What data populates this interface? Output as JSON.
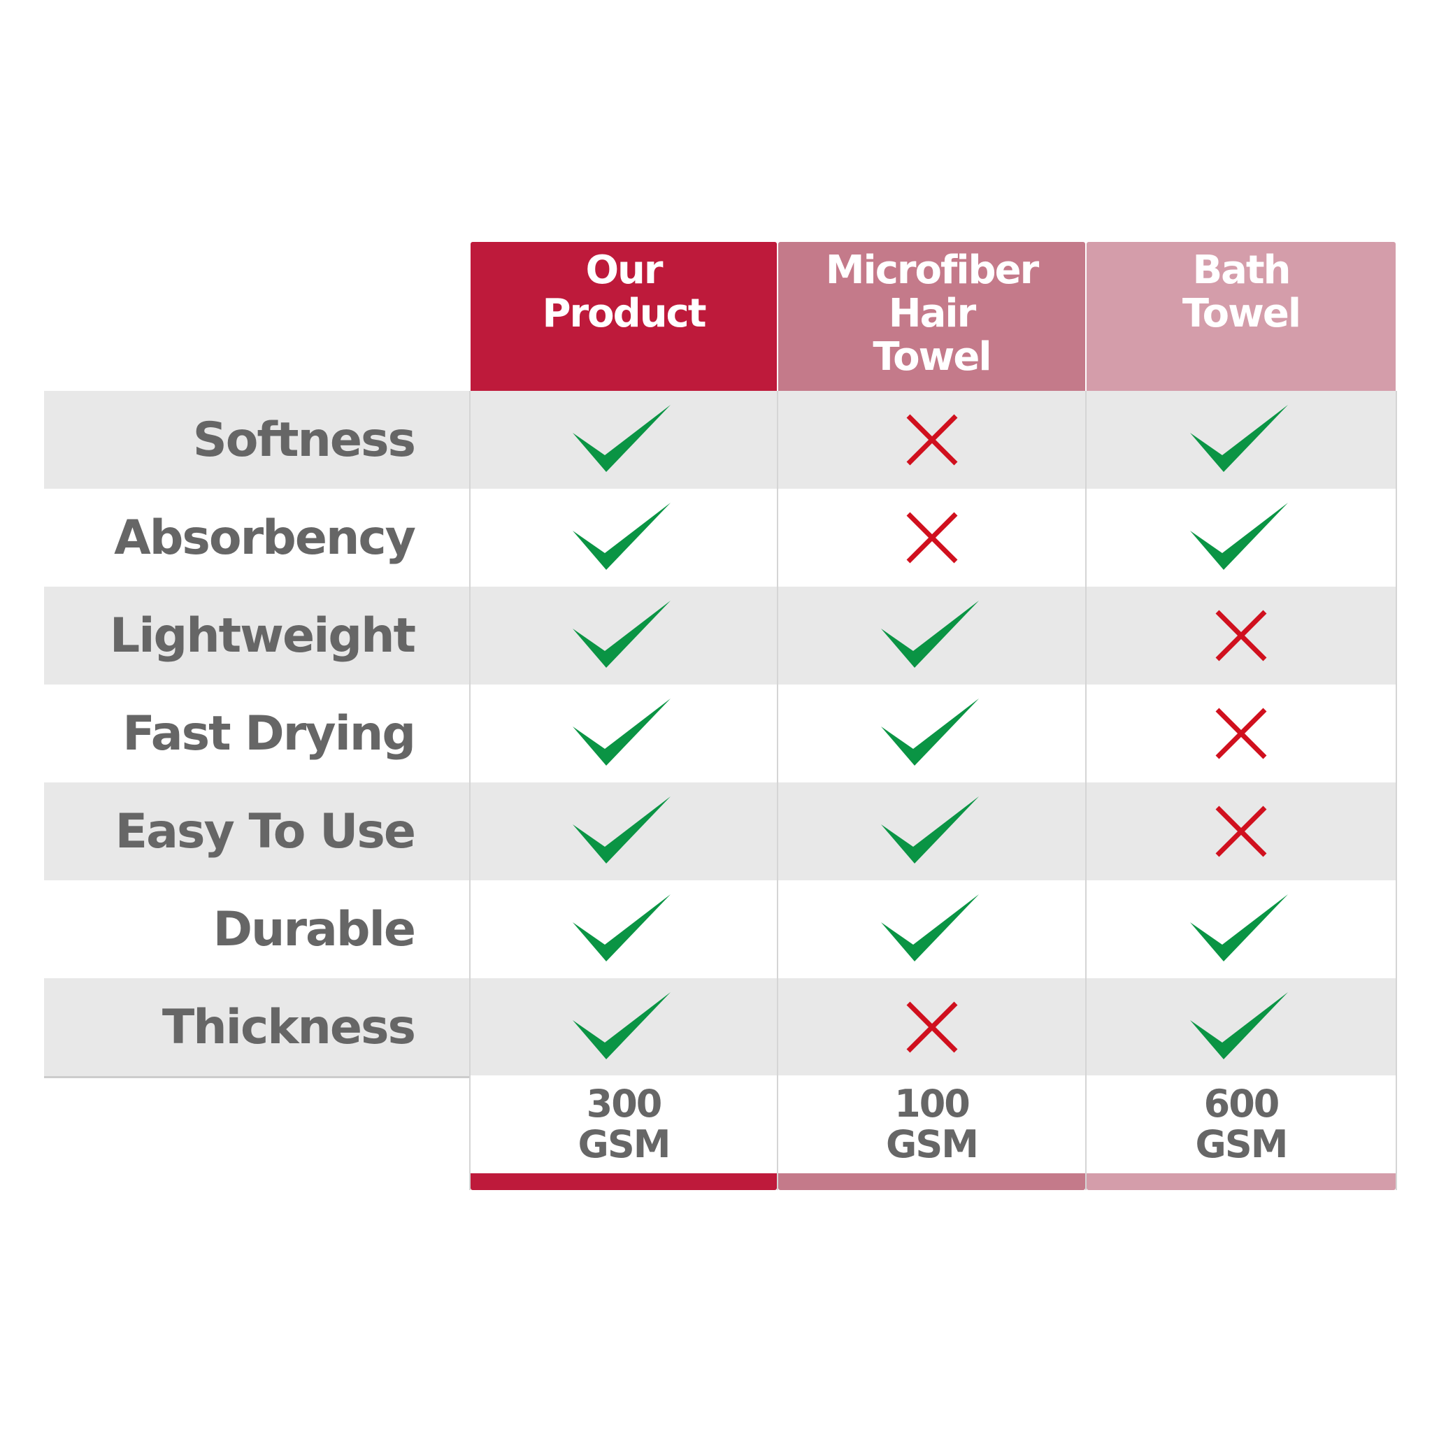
{
  "columns": [
    {
      "title_lines": [
        "Our",
        "Product"
      ],
      "color": "#be1a3b",
      "gsm": [
        "300",
        "GSM"
      ]
    },
    {
      "title_lines": [
        "Microfiber",
        "Hair",
        "Towel"
      ],
      "color": "#c47a8a",
      "gsm": [
        "100",
        "GSM"
      ]
    },
    {
      "title_lines": [
        "Bath",
        "Towel"
      ],
      "color": "#d49daa",
      "gsm": [
        "600",
        "GSM"
      ]
    }
  ],
  "rows": [
    {
      "label": "Softness",
      "values": [
        "check",
        "cross",
        "check"
      ]
    },
    {
      "label": "Absorbency",
      "values": [
        "check",
        "cross",
        "check"
      ]
    },
    {
      "label": "Lightweight",
      "values": [
        "check",
        "check",
        "cross"
      ]
    },
    {
      "label": "Fast Drying",
      "values": [
        "check",
        "check",
        "cross"
      ]
    },
    {
      "label": "Easy To Use",
      "values": [
        "check",
        "check",
        "cross"
      ]
    },
    {
      "label": "Durable",
      "values": [
        "check",
        "check",
        "check"
      ]
    },
    {
      "label": "Thickness",
      "values": [
        "check",
        "cross",
        "check"
      ]
    }
  ],
  "colors": {
    "check": "#0a9444",
    "cross": "#d0101e",
    "row_alt": "#e8e8e8",
    "row": "#ffffff",
    "text": "#666666"
  }
}
